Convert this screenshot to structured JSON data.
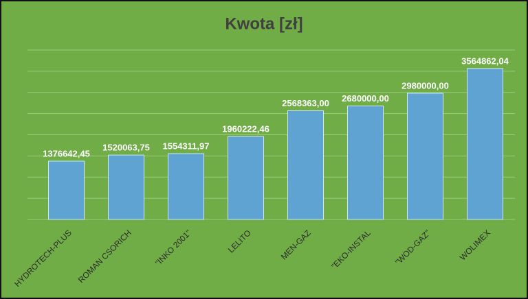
{
  "chart_data": {
    "type": "bar",
    "title": "Kwota [zł]",
    "categories": [
      "HYDROTECH-PLUS",
      "ROMAN CSORICH",
      "\"INKO 2001\"",
      "LELITO",
      "MEN-GAZ",
      "\"EKO-INSTAL",
      "\"WOD-GAZ\"",
      "WOLIMEX"
    ],
    "values": [
      1376642.45,
      1520063.75,
      1554311.97,
      1960222.46,
      2568363.0,
      2680000.0,
      2980000.0,
      3564862.04
    ],
    "value_labels": [
      "1376642,45",
      "1520063,75",
      "1554311,97",
      "1960222,46",
      "2568363,00",
      "2680000,00",
      "2980000,00",
      "3564862,04"
    ],
    "color": "#5fa3d3",
    "ylim": [
      0,
      4000000
    ],
    "yticks": [
      0,
      500000,
      1000000,
      1500000,
      2000000,
      2500000,
      3000000,
      3500000,
      4000000
    ],
    "grid": true
  }
}
